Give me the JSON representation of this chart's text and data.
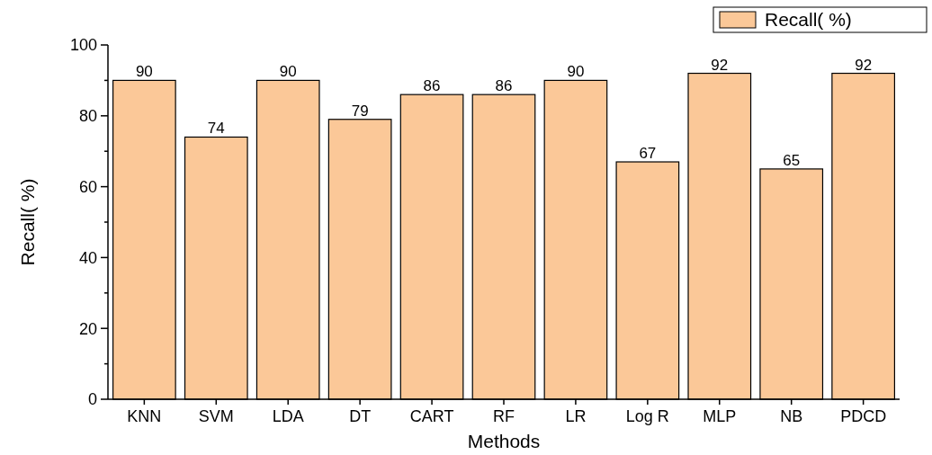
{
  "chart_data": {
    "type": "bar",
    "xlabel": "Methods",
    "ylabel": "Recall( %)",
    "categories": [
      "KNN",
      "SVM",
      "LDA",
      "DT",
      "CART",
      "RF",
      "LR",
      "Log R",
      "MLP",
      "NB",
      "PDCD"
    ],
    "series": [
      {
        "name": "Recall( %)",
        "color": "#fbc898",
        "values": [
          90,
          74,
          90,
          79,
          86,
          86,
          90,
          67,
          92,
          65,
          92
        ]
      }
    ],
    "ylim": [
      0,
      100
    ],
    "yticks": [
      0,
      {
        "value": 10,
        "label": null
      },
      20,
      {
        "value": 30,
        "label": null
      },
      40,
      {
        "value": 50,
        "label": null
      },
      60,
      {
        "value": 70,
        "label": null
      },
      80,
      {
        "value": 90,
        "label": null
      },
      100
    ],
    "data_labels": true,
    "legend": "top right",
    "grid": false
  }
}
